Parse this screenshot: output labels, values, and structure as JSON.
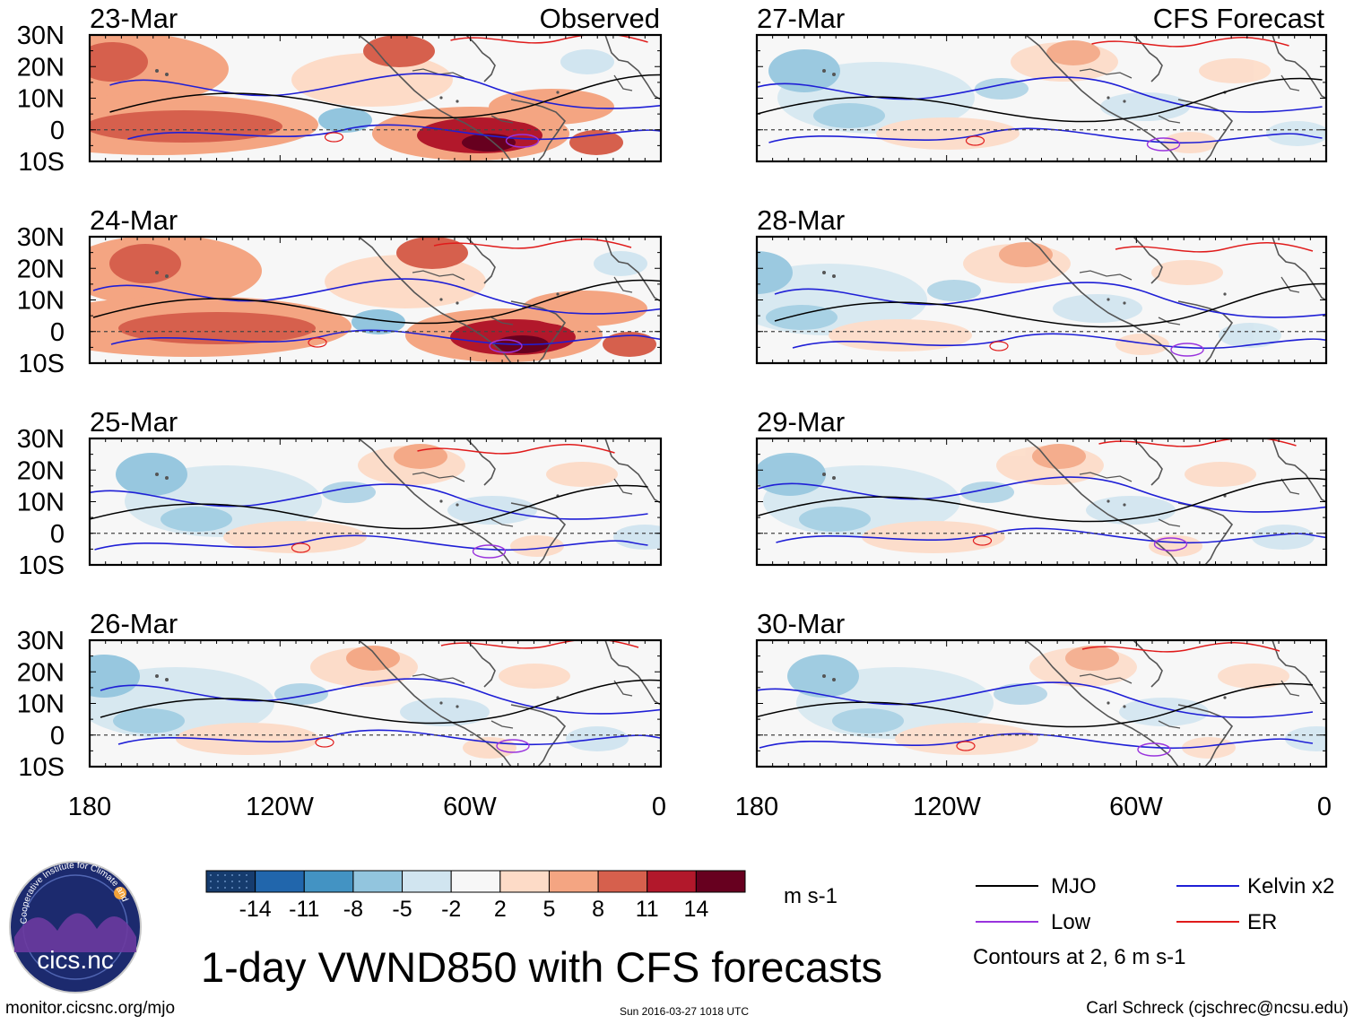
{
  "figure": {
    "title": "1-day VWND850 with CFS forecasts",
    "left_column_label": "Observed",
    "right_column_label": "CFS Forecast",
    "lat_labels": [
      "30N",
      "20N",
      "10N",
      "0",
      "10S"
    ],
    "lon_labels": [
      "180",
      "120W",
      "60W",
      "0"
    ]
  },
  "panels": [
    {
      "date": "23-Mar",
      "source": "Observed",
      "intensity": 1.0
    },
    {
      "date": "24-Mar",
      "source": "Observed",
      "intensity": 1.0
    },
    {
      "date": "25-Mar",
      "source": "Observed",
      "intensity": 0.45
    },
    {
      "date": "26-Mar",
      "source": "Observed",
      "intensity": 0.45
    },
    {
      "date": "27-Mar",
      "source": "CFS Forecast",
      "intensity": 0.4
    },
    {
      "date": "28-Mar",
      "source": "CFS Forecast",
      "intensity": 0.4
    },
    {
      "date": "29-Mar",
      "source": "CFS Forecast",
      "intensity": 0.4
    },
    {
      "date": "30-Mar",
      "source": "CFS Forecast",
      "intensity": 0.35
    }
  ],
  "colorbar": {
    "unit": "m s-1",
    "tick_labels": [
      "-14",
      "-11",
      "-8",
      "-5",
      "-2",
      "2",
      "5",
      "8",
      "11",
      "14"
    ],
    "colors": [
      "#163c6e",
      "#2166ac",
      "#4393c3",
      "#92c5de",
      "#d1e5f0",
      "#f7f7f7",
      "#fddbc7",
      "#f4a582",
      "#d6604d",
      "#b2182b",
      "#67001f"
    ]
  },
  "legend": {
    "entries": [
      {
        "label": "MJO",
        "color": "#000000"
      },
      {
        "label": "Kelvin x2",
        "color": "#1f1fd6"
      },
      {
        "label": "Low",
        "color": "#9933dd"
      },
      {
        "label": "ER",
        "color": "#e01b1b"
      }
    ],
    "note": "Contours at 2, 6 m s-1"
  },
  "logo": {
    "text": "cics.nc",
    "ring_text": "Cooperative Institute for Climate and Satellites"
  },
  "footer": {
    "website": "monitor.cicsnc.org/mjo",
    "timestamp": "Sun 2016-03-27 1018 UTC",
    "author": "Carl Schreck (cjschrec@ncsu.edu)"
  }
}
